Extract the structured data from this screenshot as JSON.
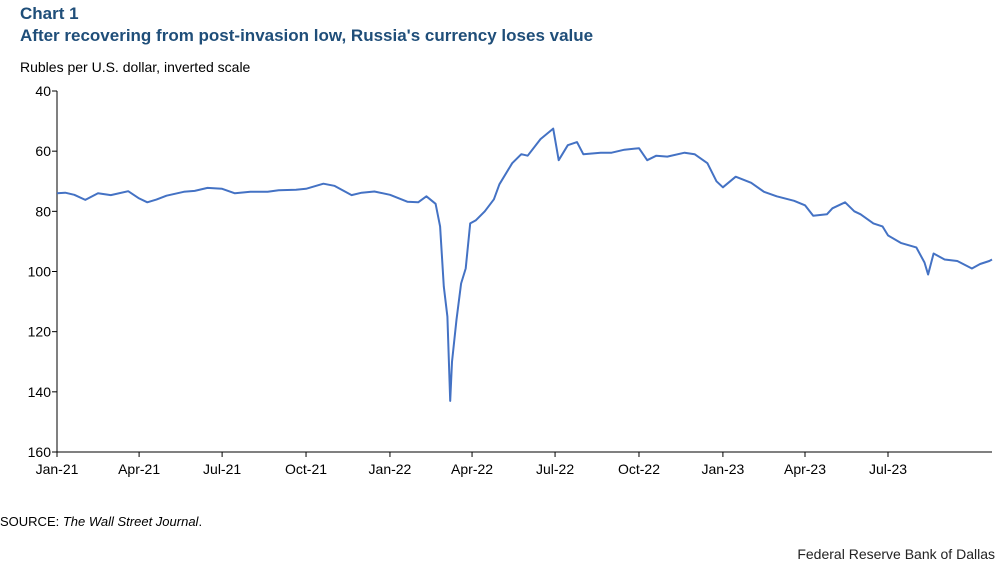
{
  "header": {
    "chart_number": "Chart 1",
    "title": "After recovering from post-invasion low, Russia's currency loses value",
    "ylabel": "Rubles per U.S. dollar, inverted scale"
  },
  "footer": {
    "source_prefix": "SOURCE: ",
    "source_name": "The Wall Street Journal",
    "source_suffix": ".",
    "credit": "Federal Reserve Bank of Dallas"
  },
  "colors": {
    "line": "#4472c4",
    "axis": "#000000",
    "title": "#1f4e79"
  },
  "chart_data": {
    "type": "line",
    "title": "After recovering from post-invasion low, Russia's currency loses value",
    "ylabel": "Rubles per U.S. dollar, inverted scale",
    "xlabel": "",
    "y_inverted": true,
    "ylim": [
      40,
      160
    ],
    "yticks": [
      40,
      60,
      80,
      100,
      120,
      140,
      160
    ],
    "xlim": [
      "2021-01-01",
      "2023-10-23"
    ],
    "xticks": [
      "Jan-21",
      "Apr-21",
      "Jul-21",
      "Oct-21",
      "Jan-22",
      "Apr-22",
      "Jul-22",
      "Oct-22",
      "Jan-23",
      "Apr-23",
      "Jul-23"
    ],
    "grid": false,
    "legend": "none",
    "series": [
      {
        "points": [
          [
            "2021-01-01",
            74.0
          ],
          [
            "2021-01-10",
            73.8
          ],
          [
            "2021-01-20",
            74.5
          ],
          [
            "2021-02-01",
            76.2
          ],
          [
            "2021-02-15",
            74.0
          ],
          [
            "2021-03-01",
            74.6
          ],
          [
            "2021-03-20",
            73.3
          ],
          [
            "2021-04-01",
            75.7
          ],
          [
            "2021-04-10",
            77.0
          ],
          [
            "2021-04-20",
            76.1
          ],
          [
            "2021-05-01",
            74.8
          ],
          [
            "2021-05-20",
            73.5
          ],
          [
            "2021-06-01",
            73.2
          ],
          [
            "2021-06-15",
            72.2
          ],
          [
            "2021-07-01",
            72.5
          ],
          [
            "2021-07-15",
            74.0
          ],
          [
            "2021-08-01",
            73.5
          ],
          [
            "2021-08-20",
            73.5
          ],
          [
            "2021-09-01",
            73.0
          ],
          [
            "2021-09-20",
            72.8
          ],
          [
            "2021-10-01",
            72.5
          ],
          [
            "2021-10-20",
            70.8
          ],
          [
            "2021-11-01",
            71.5
          ],
          [
            "2021-11-20",
            74.6
          ],
          [
            "2021-12-01",
            73.8
          ],
          [
            "2021-12-15",
            73.4
          ],
          [
            "2022-01-01",
            74.5
          ],
          [
            "2022-01-20",
            76.8
          ],
          [
            "2022-02-01",
            77.0
          ],
          [
            "2022-02-10",
            75.0
          ],
          [
            "2022-02-20",
            77.5
          ],
          [
            "2022-02-25",
            85.0
          ],
          [
            "2022-03-01",
            105.0
          ],
          [
            "2022-03-05",
            115.0
          ],
          [
            "2022-03-08",
            143.0
          ],
          [
            "2022-03-10",
            130.0
          ],
          [
            "2022-03-15",
            116.0
          ],
          [
            "2022-03-20",
            104.0
          ],
          [
            "2022-03-25",
            99.0
          ],
          [
            "2022-03-30",
            84.0
          ],
          [
            "2022-04-05",
            83.0
          ],
          [
            "2022-04-15",
            80.0
          ],
          [
            "2022-04-25",
            76.0
          ],
          [
            "2022-05-01",
            71.0
          ],
          [
            "2022-05-15",
            64.0
          ],
          [
            "2022-05-25",
            61.0
          ],
          [
            "2022-06-01",
            61.5
          ],
          [
            "2022-06-15",
            56.0
          ],
          [
            "2022-06-29",
            52.5
          ],
          [
            "2022-07-05",
            63.0
          ],
          [
            "2022-07-15",
            58.0
          ],
          [
            "2022-07-25",
            57.0
          ],
          [
            "2022-08-01",
            61.0
          ],
          [
            "2022-08-20",
            60.5
          ],
          [
            "2022-09-01",
            60.5
          ],
          [
            "2022-09-15",
            59.5
          ],
          [
            "2022-10-01",
            59.0
          ],
          [
            "2022-10-10",
            63.0
          ],
          [
            "2022-10-20",
            61.5
          ],
          [
            "2022-11-01",
            61.8
          ],
          [
            "2022-11-20",
            60.5
          ],
          [
            "2022-12-01",
            61.0
          ],
          [
            "2022-12-15",
            64.0
          ],
          [
            "2022-12-25",
            70.0
          ],
          [
            "2023-01-01",
            72.0
          ],
          [
            "2023-01-15",
            68.5
          ],
          [
            "2023-02-01",
            70.5
          ],
          [
            "2023-02-15",
            73.5
          ],
          [
            "2023-03-01",
            75.0
          ],
          [
            "2023-03-20",
            76.5
          ],
          [
            "2023-04-01",
            78.0
          ],
          [
            "2023-04-10",
            81.5
          ],
          [
            "2023-04-25",
            81.0
          ],
          [
            "2023-05-01",
            79.0
          ],
          [
            "2023-05-15",
            77.0
          ],
          [
            "2023-05-25",
            80.0
          ],
          [
            "2023-06-01",
            81.0
          ],
          [
            "2023-06-15",
            84.0
          ],
          [
            "2023-06-25",
            85.0
          ],
          [
            "2023-07-01",
            88.0
          ],
          [
            "2023-07-15",
            90.5
          ],
          [
            "2023-08-01",
            92.0
          ],
          [
            "2023-08-10",
            97.0
          ],
          [
            "2023-08-14",
            101.0
          ],
          [
            "2023-08-20",
            94.0
          ],
          [
            "2023-09-01",
            96.0
          ],
          [
            "2023-09-15",
            96.5
          ],
          [
            "2023-10-01",
            99.0
          ],
          [
            "2023-10-10",
            97.5
          ],
          [
            "2023-10-20",
            96.5
          ],
          [
            "2023-10-23",
            96.0
          ]
        ]
      }
    ]
  }
}
